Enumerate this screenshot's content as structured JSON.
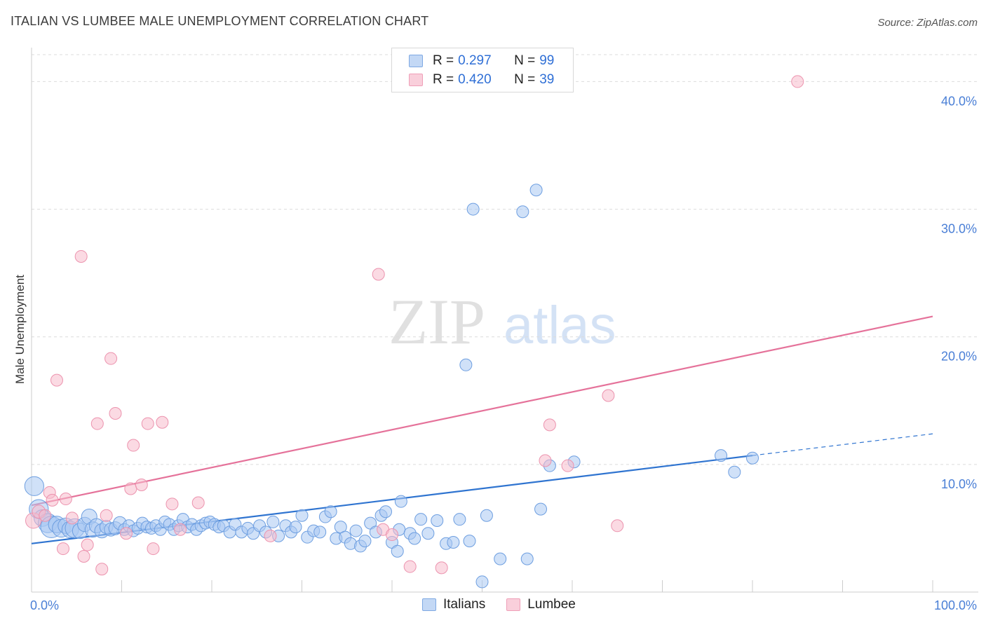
{
  "title": "ITALIAN VS LUMBEE MALE UNEMPLOYMENT CORRELATION CHART",
  "source": "Source: ZipAtlas.com",
  "watermark": {
    "zip": "ZIP",
    "atlas": "atlas"
  },
  "legend": {
    "rows": [
      {
        "r_label": "R =",
        "r_value": "0.297",
        "n_label": "N =",
        "n_value": "99"
      },
      {
        "r_label": "R =",
        "r_value": "0.420",
        "n_label": "N =",
        "n_value": "39"
      }
    ]
  },
  "bottom_legend": {
    "italians": "Italians",
    "lumbee": "Lumbee"
  },
  "colors": {
    "italians_fill": "#a9c8f2",
    "italians_stroke": "#6d9ee0",
    "italians_line": "#2f74d0",
    "lumbee_fill": "#f7bccc",
    "lumbee_stroke": "#ec93ae",
    "lumbee_line": "#e5729a",
    "tick_label": "#4a7fd6",
    "grid": "#dcdcdc"
  },
  "chart_data": {
    "type": "scatter",
    "title": "ITALIAN VS LUMBEE MALE UNEMPLOYMENT CORRELATION CHART",
    "xlabel": "",
    "ylabel": "Male Unemployment",
    "xlim": [
      0,
      100
    ],
    "ylim": [
      0,
      42
    ],
    "x_tick_labels": [
      "0.0%",
      "100.0%"
    ],
    "y_ticks": [
      10,
      20,
      30,
      40
    ],
    "y_tick_labels": [
      "10.0%",
      "20.0%",
      "30.0%",
      "40.0%"
    ],
    "grid": "horizontal dashed",
    "legend_position": "top-center",
    "series": [
      {
        "name": "Italians",
        "r": 0.297,
        "n": 99,
        "trend": {
          "x0": 0,
          "y0": 3.8,
          "x1": 80,
          "y1": 10.7,
          "dashed_to_x": 100,
          "dashed_to_y": 12.4
        },
        "points": [
          [
            0.3,
            8.3,
            1.6
          ],
          [
            0.8,
            6.5,
            1.6
          ],
          [
            1.2,
            5.8,
            1.4
          ],
          [
            1.8,
            5.4,
            1.6
          ],
          [
            2.2,
            5.1,
            1.8
          ],
          [
            2.8,
            5.3,
            1.4
          ],
          [
            3.3,
            5.0,
            1.5
          ],
          [
            3.8,
            5.2,
            1.3
          ],
          [
            4.3,
            4.9,
            1.4
          ],
          [
            4.8,
            5.0,
            1.6
          ],
          [
            5.4,
            4.8,
            1.3
          ],
          [
            5.9,
            5.3,
            1.2
          ],
          [
            6.4,
            5.9,
            1.3
          ],
          [
            6.8,
            4.9,
            1.3
          ],
          [
            7.2,
            5.2,
            1.2
          ],
          [
            7.8,
            4.8,
            1.2
          ],
          [
            8.3,
            5.1,
            1.1
          ],
          [
            8.8,
            4.9,
            1.1
          ],
          [
            9.3,
            5.0,
            1.1
          ],
          [
            9.8,
            5.4,
            1.1
          ],
          [
            10.3,
            4.9,
            1.0
          ],
          [
            10.8,
            5.2,
            1.0
          ],
          [
            11.3,
            4.8,
            1.0
          ],
          [
            11.8,
            5.0,
            1.0
          ],
          [
            12.3,
            5.4,
            1.0
          ],
          [
            12.8,
            5.1,
            1.0
          ],
          [
            13.3,
            5.0,
            1.0
          ],
          [
            13.8,
            5.2,
            1.0
          ],
          [
            14.3,
            4.9,
            1.0
          ],
          [
            14.8,
            5.5,
            1.0
          ],
          [
            15.3,
            5.3,
            1.0
          ],
          [
            15.8,
            4.9,
            1.0
          ],
          [
            16.3,
            5.2,
            1.0
          ],
          [
            16.8,
            5.7,
            1.0
          ],
          [
            17.3,
            5.1,
            1.0
          ],
          [
            17.8,
            5.3,
            1.0
          ],
          [
            18.3,
            4.9,
            1.0
          ],
          [
            18.8,
            5.2,
            1.0
          ],
          [
            19.3,
            5.4,
            1.0
          ],
          [
            19.8,
            5.5,
            1.0
          ],
          [
            20.3,
            5.3,
            1.0
          ],
          [
            20.8,
            5.1,
            1.0
          ],
          [
            21.3,
            5.2,
            1.0
          ],
          [
            22.0,
            4.7,
            1.0
          ],
          [
            22.6,
            5.3,
            1.0
          ],
          [
            23.3,
            4.7,
            1.0
          ],
          [
            24.0,
            5.0,
            1.0
          ],
          [
            24.6,
            4.6,
            1.0
          ],
          [
            25.3,
            5.2,
            1.0
          ],
          [
            26.0,
            4.7,
            1.0
          ],
          [
            26.8,
            5.5,
            1.0
          ],
          [
            27.4,
            4.4,
            1.0
          ],
          [
            28.2,
            5.2,
            1.0
          ],
          [
            28.8,
            4.7,
            1.0
          ],
          [
            29.3,
            5.1,
            1.0
          ],
          [
            30.0,
            6.0,
            1.0
          ],
          [
            30.6,
            4.3,
            1.0
          ],
          [
            31.3,
            4.8,
            1.0
          ],
          [
            32.0,
            4.7,
            1.0
          ],
          [
            32.6,
            5.9,
            1.0
          ],
          [
            33.2,
            6.3,
            1.0
          ],
          [
            33.8,
            4.2,
            1.0
          ],
          [
            34.3,
            5.1,
            1.0
          ],
          [
            34.8,
            4.3,
            1.0
          ],
          [
            35.4,
            3.8,
            1.0
          ],
          [
            36.0,
            4.8,
            1.0
          ],
          [
            36.5,
            3.6,
            1.0
          ],
          [
            37.0,
            4.0,
            1.0
          ],
          [
            37.6,
            5.4,
            1.0
          ],
          [
            38.2,
            4.7,
            1.0
          ],
          [
            38.8,
            6.0,
            1.0
          ],
          [
            39.3,
            6.3,
            1.0
          ],
          [
            40.0,
            3.9,
            1.0
          ],
          [
            40.6,
            3.2,
            1.0
          ],
          [
            40.8,
            4.9,
            1.0
          ],
          [
            41.0,
            7.1,
            1.0
          ],
          [
            42.0,
            4.6,
            1.0
          ],
          [
            42.5,
            4.2,
            1.0
          ],
          [
            43.2,
            5.7,
            1.0
          ],
          [
            44.0,
            4.6,
            1.0
          ],
          [
            45.0,
            5.6,
            1.0
          ],
          [
            46.0,
            3.8,
            1.0
          ],
          [
            46.8,
            3.9,
            1.0
          ],
          [
            47.5,
            5.7,
            1.0
          ],
          [
            48.2,
            17.8,
            1.0
          ],
          [
            48.6,
            4.0,
            1.0
          ],
          [
            49.0,
            30.0,
            1.0
          ],
          [
            50.0,
            0.8,
            1.0
          ],
          [
            50.5,
            6.0,
            1.0
          ],
          [
            52.0,
            2.6,
            1.0
          ],
          [
            54.5,
            29.8,
            1.0
          ],
          [
            55.0,
            2.6,
            1.0
          ],
          [
            56.0,
            31.5,
            1.0
          ],
          [
            56.5,
            6.5,
            1.0
          ],
          [
            57.5,
            9.9,
            1.0
          ],
          [
            60.2,
            10.2,
            1.0
          ],
          [
            76.5,
            10.7,
            1.0
          ],
          [
            78.0,
            9.4,
            1.0
          ],
          [
            80.0,
            10.5,
            1.0
          ]
        ]
      },
      {
        "name": "Lumbee",
        "r": 0.42,
        "n": 39,
        "trend": {
          "x0": 0,
          "y0": 6.8,
          "x1": 100,
          "y1": 21.6
        },
        "points": [
          [
            0.2,
            5.6,
            1.3
          ],
          [
            0.8,
            6.3,
            1.1
          ],
          [
            1.5,
            6.0,
            1.0
          ],
          [
            2.0,
            7.8,
            1.0
          ],
          [
            2.3,
            7.2,
            1.0
          ],
          [
            2.8,
            16.6,
            1.0
          ],
          [
            3.5,
            3.4,
            1.0
          ],
          [
            3.8,
            7.3,
            1.0
          ],
          [
            4.5,
            5.8,
            1.0
          ],
          [
            5.5,
            26.3,
            1.0
          ],
          [
            5.8,
            2.8,
            1.0
          ],
          [
            6.2,
            3.7,
            1.0
          ],
          [
            7.3,
            13.2,
            1.0
          ],
          [
            7.8,
            1.8,
            1.0
          ],
          [
            8.3,
            6.0,
            1.0
          ],
          [
            8.8,
            18.3,
            1.0
          ],
          [
            9.3,
            14.0,
            1.0
          ],
          [
            10.5,
            4.6,
            1.0
          ],
          [
            11.0,
            8.1,
            1.0
          ],
          [
            11.3,
            11.5,
            1.0
          ],
          [
            12.2,
            8.4,
            1.0
          ],
          [
            12.9,
            13.2,
            1.0
          ],
          [
            13.5,
            3.4,
            1.0
          ],
          [
            14.5,
            13.3,
            1.0
          ],
          [
            15.6,
            6.9,
            1.0
          ],
          [
            16.5,
            4.9,
            1.0
          ],
          [
            18.5,
            7.0,
            1.0
          ],
          [
            26.5,
            4.4,
            1.0
          ],
          [
            38.5,
            24.9,
            1.0
          ],
          [
            39.0,
            4.9,
            1.0
          ],
          [
            40.0,
            4.5,
            1.0
          ],
          [
            42.0,
            2.0,
            1.0
          ],
          [
            45.5,
            1.9,
            1.0
          ],
          [
            57.0,
            10.3,
            1.0
          ],
          [
            57.5,
            13.1,
            1.0
          ],
          [
            59.5,
            9.9,
            1.0
          ],
          [
            64.0,
            15.4,
            1.0
          ],
          [
            65.0,
            5.2,
            1.0
          ],
          [
            85.0,
            40.0,
            1.0
          ]
        ]
      }
    ]
  }
}
